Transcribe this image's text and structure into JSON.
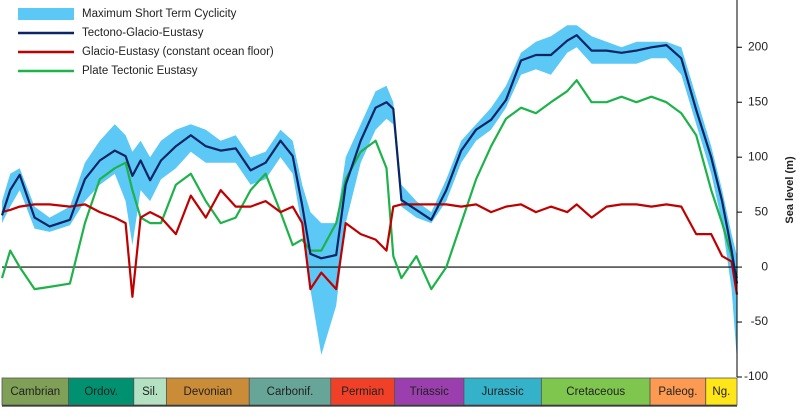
{
  "chart_data": {
    "type": "line",
    "y_axis_label": "Sea level (m)",
    "xlim": [
      541,
      0
    ],
    "ylim": [
      -100,
      243
    ],
    "yticks": [
      -100,
      -50,
      0,
      50,
      100,
      150,
      200
    ],
    "x": [
      541,
      535,
      528,
      517,
      506,
      491,
      480,
      469,
      458,
      450,
      445,
      439,
      432,
      424,
      413,
      402,
      391,
      380,
      369,
      358,
      347,
      336,
      327,
      320,
      314,
      306,
      295,
      288,
      277,
      266,
      258,
      253,
      247,
      236,
      225,
      214,
      203,
      192,
      181,
      170,
      159,
      148,
      137,
      125,
      118,
      107,
      96,
      85,
      74,
      63,
      52,
      41,
      30,
      19,
      11,
      4,
      0
    ],
    "band": {
      "name": "Maximum Short Term Cyclicity",
      "color": "#5bc8f5",
      "upper": [
        60,
        85,
        90,
        55,
        45,
        55,
        95,
        115,
        130,
        120,
        105,
        115,
        100,
        115,
        125,
        130,
        125,
        115,
        120,
        100,
        105,
        125,
        115,
        75,
        50,
        40,
        40,
        100,
        130,
        160,
        165,
        150,
        75,
        60,
        50,
        80,
        115,
        130,
        145,
        165,
        195,
        205,
        210,
        220,
        220,
        210,
        205,
        200,
        205,
        205,
        205,
        200,
        155,
        110,
        70,
        30,
        10
      ],
      "lower": [
        40,
        55,
        70,
        35,
        32,
        38,
        60,
        75,
        85,
        60,
        20,
        70,
        60,
        80,
        90,
        105,
        95,
        95,
        95,
        75,
        80,
        100,
        85,
        35,
        -20,
        -80,
        -35,
        40,
        95,
        125,
        135,
        130,
        55,
        45,
        40,
        60,
        95,
        115,
        125,
        145,
        175,
        180,
        175,
        195,
        200,
        185,
        185,
        185,
        185,
        190,
        190,
        175,
        130,
        85,
        40,
        -20,
        -85
      ]
    },
    "series": [
      {
        "name": "Tectono-Glacio-Eustasy",
        "color": "#0b2466",
        "values": [
          47,
          70,
          84,
          45,
          37,
          43,
          80,
          97,
          106,
          101,
          83,
          97,
          79,
          97,
          110,
          120,
          110,
          106,
          108,
          88,
          95,
          115,
          101,
          56,
          12,
          8,
          11,
          75,
          115,
          145,
          150,
          144,
          61,
          52,
          43,
          70,
          106,
          125,
          134,
          152,
          188,
          193,
          193,
          206,
          211,
          197,
          197,
          195,
          197,
          200,
          202,
          190,
          143,
          100,
          60,
          15,
          -15
        ]
      },
      {
        "name": "Glacio-Eustasy (constant ocean floor)",
        "color": "#c00000",
        "values": [
          50,
          52,
          55,
          57,
          57,
          55,
          57,
          50,
          45,
          40,
          -27,
          45,
          50,
          45,
          30,
          65,
          45,
          70,
          55,
          55,
          60,
          50,
          55,
          40,
          -20,
          -5,
          -20,
          40,
          30,
          25,
          15,
          55,
          57,
          57,
          57,
          57,
          55,
          57,
          50,
          55,
          57,
          50,
          55,
          50,
          57,
          45,
          55,
          57,
          57,
          55,
          57,
          55,
          30,
          30,
          10,
          5,
          -25
        ]
      },
      {
        "name": "Plate Tectonic Eustasy",
        "color": "#1db24a",
        "values": [
          -10,
          15,
          0,
          -20,
          -18,
          -15,
          40,
          80,
          90,
          95,
          70,
          45,
          40,
          40,
          75,
          85,
          60,
          40,
          45,
          70,
          85,
          50,
          20,
          25,
          15,
          15,
          40,
          80,
          105,
          115,
          90,
          10,
          -10,
          10,
          -20,
          0,
          40,
          80,
          110,
          135,
          145,
          140,
          150,
          160,
          170,
          150,
          150,
          155,
          150,
          155,
          150,
          140,
          120,
          70,
          40,
          10,
          -10
        ]
      }
    ],
    "periods": [
      {
        "name": "Cambrian",
        "start": 541,
        "end": 492,
        "color": "#7fa056"
      },
      {
        "name": "Ordov.",
        "start": 492,
        "end": 444,
        "color": "#009270"
      },
      {
        "name": "Sil.",
        "start": 444,
        "end": 420,
        "color": "#b3e1c2"
      },
      {
        "name": "Devonian",
        "start": 420,
        "end": 359,
        "color": "#cb8c37"
      },
      {
        "name": "Carbonif.",
        "start": 359,
        "end": 299,
        "color": "#67a599"
      },
      {
        "name": "Permian",
        "start": 299,
        "end": 252,
        "color": "#f04028"
      },
      {
        "name": "Triassic",
        "start": 252,
        "end": 201,
        "color": "#9b3fae"
      },
      {
        "name": "Jurassic",
        "start": 201,
        "end": 144,
        "color": "#34b2c9"
      },
      {
        "name": "Cretaceous",
        "start": 144,
        "end": 64,
        "color": "#7fc64e"
      },
      {
        "name": "Paleog.",
        "start": 64,
        "end": 23,
        "color": "#fd9a52"
      },
      {
        "name": "Ng.",
        "start": 23,
        "end": 0,
        "color": "#ffe619"
      }
    ]
  }
}
